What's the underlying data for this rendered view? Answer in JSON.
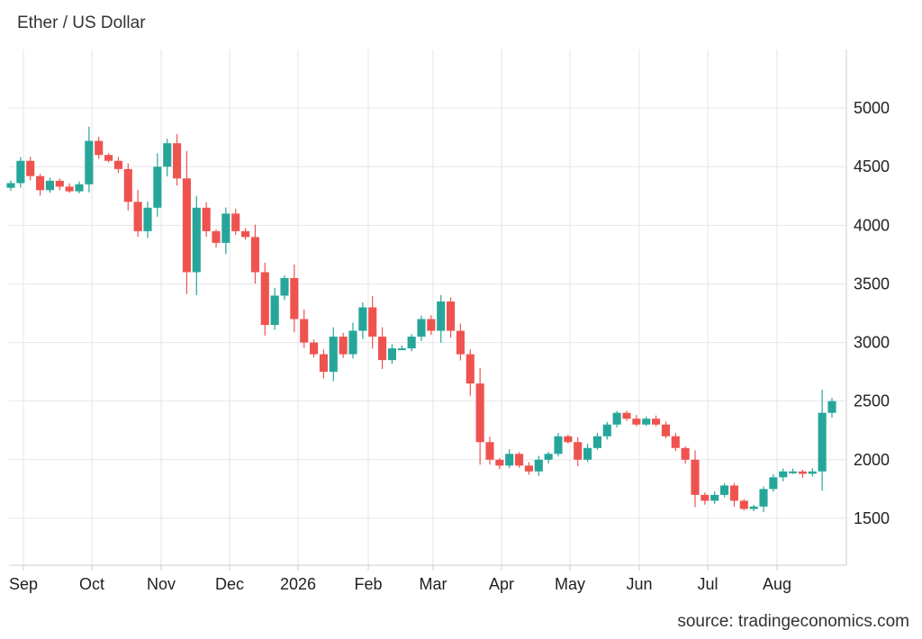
{
  "header": {
    "title": "Ether / US Dollar"
  },
  "footer": {
    "source": "source: tradingeconomics.com"
  },
  "colors": {
    "up": "#26a69a",
    "down": "#ef5350",
    "grid": "#e6e6e6",
    "axis": "#cccccc"
  },
  "chart_data": {
    "type": "candlestick",
    "title": "Ether / US Dollar",
    "xlabel": "",
    "ylabel": "",
    "ylim": [
      1100,
      5500
    ],
    "yticks": [
      1500,
      2000,
      2500,
      3000,
      3500,
      4000,
      4500,
      5000
    ],
    "xticks": [
      "Sep",
      "Oct",
      "Nov",
      "Dec",
      "2026",
      "Feb",
      "Mar",
      "Apr",
      "May",
      "Jun",
      "Jul",
      "Aug"
    ],
    "grid": true,
    "legend": "none",
    "series": [
      {
        "values": [
          4360,
          4550,
          4420,
          4300,
          4380,
          4330,
          4290,
          4350,
          4720,
          4600,
          4550,
          4480,
          4200,
          3950,
          4150,
          4500,
          4700,
          4400,
          3600,
          4150,
          3950,
          3850,
          4100,
          3950,
          3900,
          3600,
          3150,
          3400,
          3550,
          3200,
          3000,
          2900,
          2750,
          3050,
          2900,
          3100,
          3300,
          3050,
          2850,
          2950,
          2950,
          3050,
          3200,
          3100,
          3350,
          3100,
          2900,
          2650,
          2150,
          2000,
          1950,
          2050,
          1950,
          1900,
          2000,
          2050,
          2200,
          2150,
          2000,
          2100,
          2200,
          2300,
          2400,
          2350,
          2300,
          2350,
          2300,
          2200,
          2100,
          2000,
          1700,
          1650,
          1700,
          1780,
          1650,
          1580,
          1600,
          1750,
          1850,
          1900,
          1900,
          1880,
          1900,
          2400,
          2500
        ]
      }
    ]
  }
}
